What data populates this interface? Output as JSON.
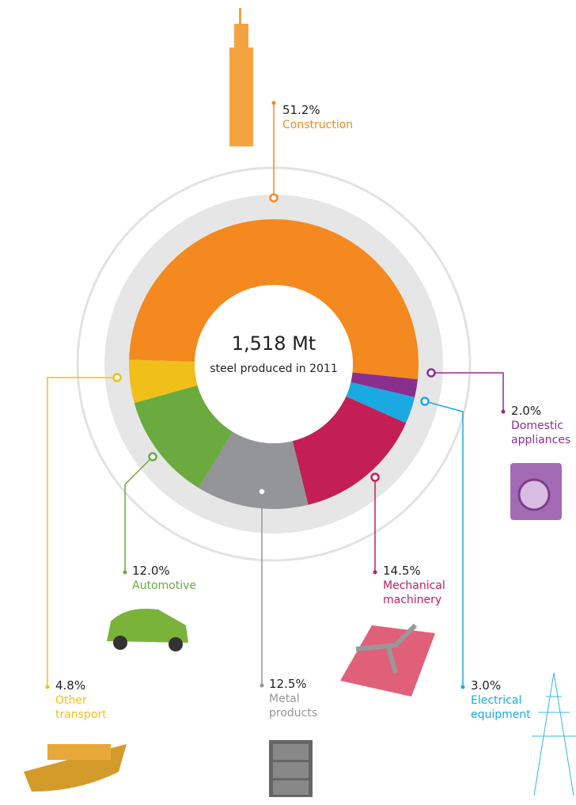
{
  "chart_data": {
    "type": "donut",
    "center_value": "1,518 Mt",
    "center_text": "steel produced in 2011",
    "categories": [
      "Construction",
      "Domestic appliances",
      "Electrical equipment",
      "Mechanical machinery",
      "Metal products",
      "Automotive",
      "Other transport"
    ],
    "values": [
      51.2,
      2.0,
      3.0,
      14.5,
      12.5,
      12.0,
      4.8
    ],
    "value_labels": [
      "51.2%",
      "2.0%",
      "3.0%",
      "14.5%",
      "12.5%",
      "12.0%",
      "4.8%"
    ],
    "colors": [
      "#f4891f",
      "#8b2f8f",
      "#1ba9e1",
      "#c41e56",
      "#939598",
      "#6aaa3e",
      "#f1bf1a"
    ]
  }
}
